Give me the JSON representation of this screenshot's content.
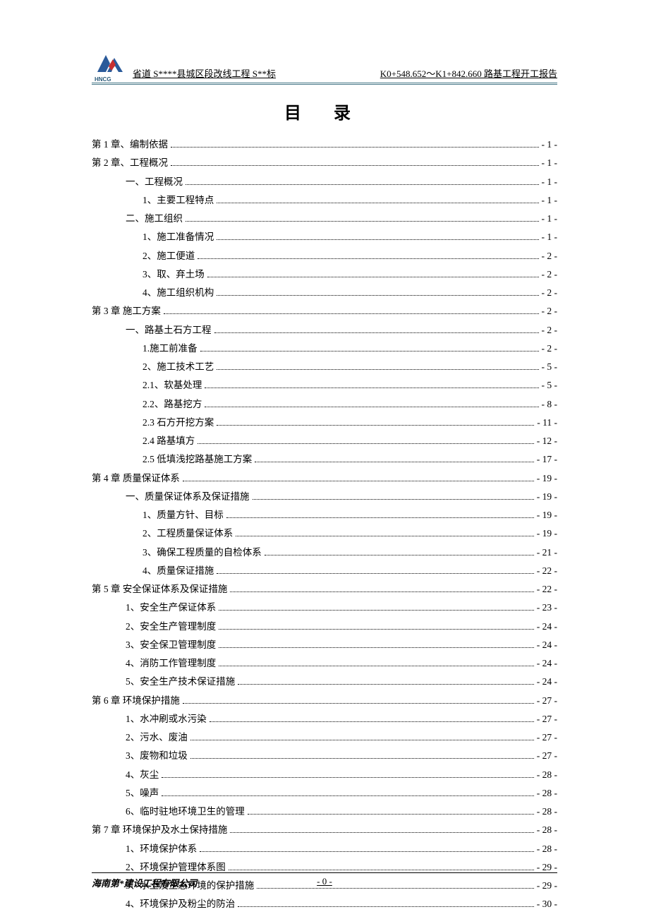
{
  "header": {
    "logo_label": "HNCG",
    "left_text": "省道 S****县城区段改线工程 S**标",
    "right_text": "K0+548.652～K1+842.660 路基工程开工报告"
  },
  "title": "目  录",
  "toc": [
    {
      "indent": 0,
      "label": "第 1 章、编制依据",
      "page": "- 1 -"
    },
    {
      "indent": 0,
      "label": "第 2 章、工程概况",
      "page": "- 1 -"
    },
    {
      "indent": 1,
      "label": "一、工程概况",
      "page": "- 1 -"
    },
    {
      "indent": 2,
      "label": "1、主要工程特点",
      "page": "- 1 -"
    },
    {
      "indent": 1,
      "label": "二、施工组织",
      "page": "- 1 -"
    },
    {
      "indent": 2,
      "label": "1、施工准备情况",
      "page": "- 1 -"
    },
    {
      "indent": 2,
      "label": "2、施工便道",
      "page": "- 2 -"
    },
    {
      "indent": 2,
      "label": "3、取、弃土场",
      "page": "- 2 -"
    },
    {
      "indent": 2,
      "label": "4、施工组织机构",
      "page": "- 2 -"
    },
    {
      "indent": 0,
      "label": "第 3 章   施工方案",
      "page": "- 2 -"
    },
    {
      "indent": 1,
      "label": "一、路基土石方工程",
      "page": "- 2 -"
    },
    {
      "indent": 2,
      "label": "1.施工前准备",
      "page": "- 2 -"
    },
    {
      "indent": 2,
      "label": "2、施工技术工艺",
      "page": "- 5 -"
    },
    {
      "indent": 2,
      "label": "2.1、软基处理",
      "page": "- 5 -"
    },
    {
      "indent": 2,
      "label": "2.2、路基挖方",
      "page": "- 8 -"
    },
    {
      "indent": 2,
      "label": "2.3 石方开挖方案",
      "page": "- 11 -"
    },
    {
      "indent": 2,
      "label": "2.4 路基填方",
      "page": "- 12 -"
    },
    {
      "indent": 2,
      "label": "2.5 低填浅挖路基施工方案",
      "page": "- 17 -"
    },
    {
      "indent": 0,
      "label": "第 4 章 质量保证体系",
      "page": "- 19 -"
    },
    {
      "indent": 1,
      "label": "一、质量保证体系及保证措施",
      "page": "- 19 -"
    },
    {
      "indent": 2,
      "label": "1、质量方针、目标",
      "page": "- 19 -"
    },
    {
      "indent": 2,
      "label": "2、工程质量保证体系",
      "page": "- 19 -"
    },
    {
      "indent": 2,
      "label": "3、确保工程质量的自检体系",
      "page": "- 21 -"
    },
    {
      "indent": 2,
      "label": "4、质量保证措施",
      "page": "- 22 -"
    },
    {
      "indent": 0,
      "label": "第 5 章   安全保证体系及保证措施",
      "page": "- 22 -"
    },
    {
      "indent": 1,
      "label": "1、安全生产保证体系",
      "page": "- 23 -"
    },
    {
      "indent": 1,
      "label": "2、安全生产管理制度",
      "page": "- 24 -"
    },
    {
      "indent": 1,
      "label": "3、安全保卫管理制度",
      "page": "- 24 -"
    },
    {
      "indent": 1,
      "label": "4、消防工作管理制度",
      "page": "- 24 -"
    },
    {
      "indent": 1,
      "label": "5、安全生产技术保证措施",
      "page": "- 24 -"
    },
    {
      "indent": 0,
      "label": "第 6 章     环境保护措施",
      "page": "- 27 -"
    },
    {
      "indent": 1,
      "label": "1、水冲刷或水污染",
      "page": "- 27 -"
    },
    {
      "indent": 1,
      "label": "2、污水、废油",
      "page": "- 27 -"
    },
    {
      "indent": 1,
      "label": "3、废物和垃圾",
      "page": "- 27 -"
    },
    {
      "indent": 1,
      "label": "4、灰尘",
      "page": "- 28 -"
    },
    {
      "indent": 1,
      "label": "5、噪声",
      "page": "- 28 -"
    },
    {
      "indent": 1,
      "label": "6、临时驻地环境卫生的管理",
      "page": "- 28 -"
    },
    {
      "indent": 0,
      "label": "第 7 章   环境保护及水土保持措施",
      "page": "- 28 -"
    },
    {
      "indent": 1,
      "label": "1、环境保护体系",
      "page": "- 28 -"
    },
    {
      "indent": 1,
      "label": "2、环境保护管理体系图",
      "page": "- 29 -"
    },
    {
      "indent": 1,
      "label": "3、水土及生态环境的保护措施",
      "page": "- 29 -"
    },
    {
      "indent": 1,
      "label": "4、环境保护及粉尘的防治",
      "page": "- 30 -"
    }
  ],
  "footer": {
    "company": "海南第*建设工程有限公司",
    "page_number": "- 0 -"
  },
  "colors": {
    "logo_blue": "#2a5a9a",
    "logo_red": "#c83030",
    "header_line": "#4a7a8a"
  }
}
